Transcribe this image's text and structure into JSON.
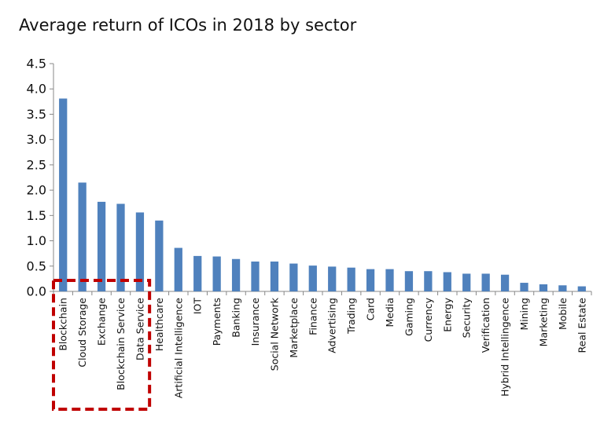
{
  "chart_data": {
    "type": "bar",
    "title": "Average return of ICOs in 2018 by sector",
    "xlabel": "",
    "ylabel": "",
    "ylim": [
      0,
      4.5
    ],
    "yticks": [
      "0.0",
      "0.5",
      "1.0",
      "1.5",
      "2.0",
      "2.5",
      "3.0",
      "3.5",
      "4.0",
      "4.5"
    ],
    "categories": [
      "Blockchain",
      "Cloud Storage",
      "Exchange",
      "Blockchain Service",
      "Data Service",
      "Healthcare",
      "Artificial Intelligence",
      "IOT",
      "Payments",
      "Banking",
      "Insurance",
      "Social Network",
      "Marketplace",
      "Finance",
      "Advertising",
      "Trading",
      "Card",
      "Media",
      "Gaming",
      "Currency",
      "Energy",
      "Security",
      "Verification",
      "Hybrid Intellingence",
      "Mining",
      "Marketing",
      "Mobile",
      "Real Estate"
    ],
    "values": [
      3.81,
      2.15,
      1.77,
      1.73,
      1.56,
      1.4,
      0.86,
      0.7,
      0.69,
      0.64,
      0.59,
      0.59,
      0.55,
      0.51,
      0.49,
      0.47,
      0.44,
      0.44,
      0.4,
      0.4,
      0.38,
      0.35,
      0.35,
      0.33,
      0.17,
      0.14,
      0.12,
      0.1
    ],
    "grid": false,
    "legend": "none",
    "bar_color": "#4f81bd",
    "highlight": {
      "categories": [
        "Blockchain",
        "Cloud Storage",
        "Exchange",
        "Blockchain Service",
        "Data Service"
      ],
      "color": "#c00000",
      "style": "dashed-box"
    }
  }
}
